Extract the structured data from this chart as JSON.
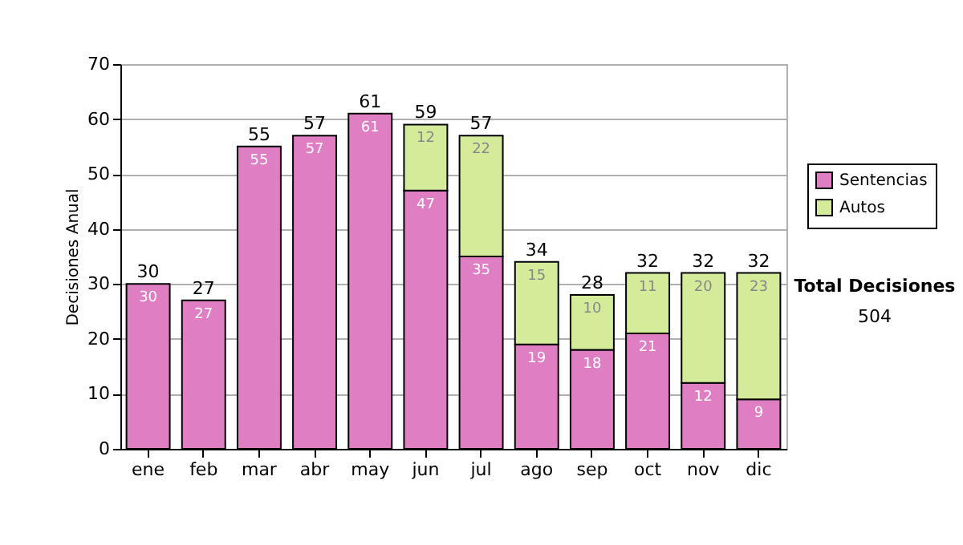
{
  "chart_data": {
    "type": "bar",
    "ylabel": "Decisiones Anual",
    "categories": [
      "ene",
      "feb",
      "mar",
      "abr",
      "may",
      "jun",
      "jul",
      "ago",
      "sep",
      "oct",
      "nov",
      "dic"
    ],
    "series": [
      {
        "name": "Sentencias",
        "color": "#e07ec4",
        "values": [
          30,
          27,
          55,
          57,
          61,
          47,
          35,
          19,
          18,
          21,
          12,
          9
        ]
      },
      {
        "name": "Autos",
        "color": "#d4eb9a",
        "values": [
          null,
          null,
          null,
          null,
          null,
          12,
          22,
          15,
          10,
          11,
          20,
          23
        ]
      }
    ],
    "stacked": true,
    "data_labels": true,
    "totals": [
      "30",
      "27",
      "55",
      "57",
      "61",
      "59",
      "57",
      "34",
      "28",
      "32",
      "32",
      "32"
    ],
    "ylim": [
      0,
      70
    ],
    "yticks": [
      0,
      10,
      20,
      30,
      40,
      50,
      60,
      70
    ],
    "grid": "y",
    "legend": "right",
    "annotations": [
      "Total Decisiones",
      "504"
    ]
  }
}
